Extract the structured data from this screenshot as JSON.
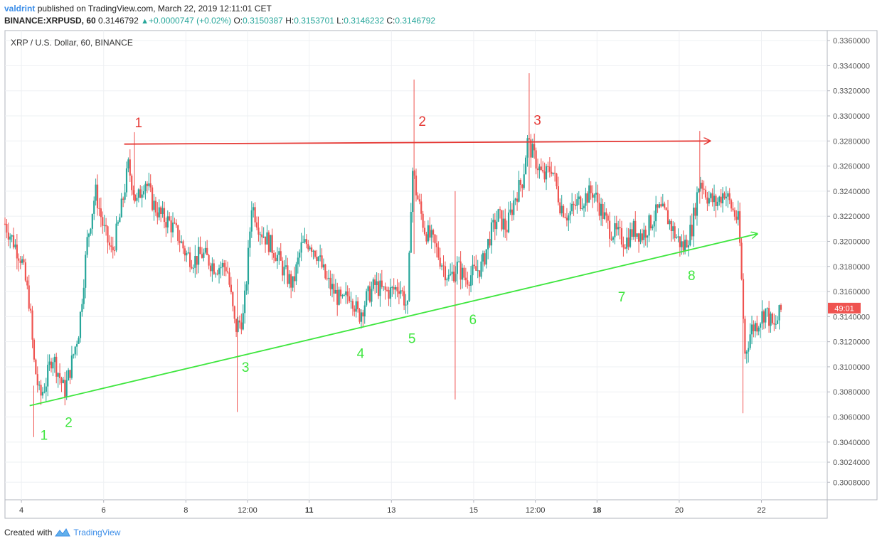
{
  "header": {
    "author": "valdrint",
    "published_text": "published on TradingView.com, March 22, 2019 12:11:01 CET",
    "symbol": "BINANCE:XRPUSD, 60",
    "last_price": "0.3146792",
    "change": "+0.0000747 (+0.02%)",
    "open_label": "O:",
    "open": "0.3150387",
    "high_label": "H:",
    "high": "0.3153701",
    "low_label": "L:",
    "low": "0.3146232",
    "close_label": "C:",
    "close": "0.3146792"
  },
  "footer": {
    "created_with": "Created with",
    "brand": "TradingView"
  },
  "chart_data": {
    "type": "candlestick",
    "title": "XRP / U.S. Dollar, 60, BINANCE",
    "price_badge": "49:01",
    "ylim": [
      0.2994,
      0.3368
    ],
    "x_range": [
      3.6,
      23.6
    ],
    "y_ticks": [
      0.3008,
      0.3024,
      0.304,
      0.306,
      0.308,
      0.31,
      0.312,
      0.314,
      0.316,
      0.318,
      0.32,
      0.322,
      0.324,
      0.326,
      0.328,
      0.33,
      0.332,
      0.334,
      0.336
    ],
    "y_tick_labels": [
      "0.3008000",
      "0.3024000",
      "0.3040000",
      "0.3060000",
      "0.3080000",
      "0.3100000",
      "0.3120000",
      "0.3140000",
      "0.3160000",
      "0.3180000",
      "0.3200000",
      "0.3220000",
      "0.3240000",
      "0.3260000",
      "0.3280000",
      "0.3300000",
      "0.3320000",
      "0.3340000",
      "0.3360000"
    ],
    "x_ticks": [
      {
        "x": 4,
        "label": "4",
        "bold": false
      },
      {
        "x": 6,
        "label": "6",
        "bold": false
      },
      {
        "x": 8,
        "label": "8",
        "bold": false
      },
      {
        "x": 9.5,
        "label": "12:00",
        "bold": false
      },
      {
        "x": 11,
        "label": "11",
        "bold": true
      },
      {
        "x": 13,
        "label": "13",
        "bold": false
      },
      {
        "x": 15,
        "label": "15",
        "bold": false
      },
      {
        "x": 16.5,
        "label": "12:00",
        "bold": false
      },
      {
        "x": 18,
        "label": "18",
        "bold": true
      },
      {
        "x": 20,
        "label": "20",
        "bold": false
      },
      {
        "x": 22,
        "label": "22",
        "bold": false
      }
    ],
    "price_path": [
      [
        3.6,
        0.3214
      ],
      [
        4.0,
        0.3186
      ],
      [
        4.2,
        0.315
      ],
      [
        4.3,
        0.3105
      ],
      [
        4.45,
        0.3075
      ],
      [
        4.6,
        0.3088
      ],
      [
        4.75,
        0.311
      ],
      [
        4.9,
        0.3095
      ],
      [
        5.05,
        0.308
      ],
      [
        5.2,
        0.31
      ],
      [
        5.4,
        0.313
      ],
      [
        5.6,
        0.32
      ],
      [
        5.8,
        0.324
      ],
      [
        6.0,
        0.321
      ],
      [
        6.2,
        0.319
      ],
      [
        6.4,
        0.322
      ],
      [
        6.6,
        0.326
      ],
      [
        6.8,
        0.323
      ],
      [
        7.0,
        0.325
      ],
      [
        7.2,
        0.323
      ],
      [
        7.4,
        0.322
      ],
      [
        7.6,
        0.3215
      ],
      [
        7.8,
        0.3205
      ],
      [
        8.0,
        0.319
      ],
      [
        8.2,
        0.3185
      ],
      [
        8.4,
        0.319
      ],
      [
        8.7,
        0.318
      ],
      [
        9.0,
        0.318
      ],
      [
        9.2,
        0.313
      ],
      [
        9.4,
        0.314
      ],
      [
        9.5,
        0.318
      ],
      [
        9.6,
        0.323
      ],
      [
        9.8,
        0.321
      ],
      [
        10.0,
        0.32
      ],
      [
        10.2,
        0.319
      ],
      [
        10.4,
        0.3175
      ],
      [
        10.6,
        0.3165
      ],
      [
        10.8,
        0.3195
      ],
      [
        11.0,
        0.32
      ],
      [
        11.2,
        0.319
      ],
      [
        11.4,
        0.317
      ],
      [
        11.6,
        0.316
      ],
      [
        11.8,
        0.315
      ],
      [
        12.0,
        0.316
      ],
      [
        12.2,
        0.314
      ],
      [
        12.4,
        0.3155
      ],
      [
        12.6,
        0.3165
      ],
      [
        12.8,
        0.316
      ],
      [
        13.0,
        0.316
      ],
      [
        13.2,
        0.3165
      ],
      [
        13.4,
        0.3145
      ],
      [
        13.5,
        0.326
      ],
      [
        13.6,
        0.324
      ],
      [
        13.8,
        0.321
      ],
      [
        14.0,
        0.32
      ],
      [
        14.2,
        0.3185
      ],
      [
        14.4,
        0.317
      ],
      [
        14.6,
        0.318
      ],
      [
        14.8,
        0.317
      ],
      [
        15.0,
        0.3175
      ],
      [
        15.2,
        0.318
      ],
      [
        15.4,
        0.3205
      ],
      [
        15.6,
        0.322
      ],
      [
        15.8,
        0.321
      ],
      [
        16.0,
        0.3235
      ],
      [
        16.2,
        0.325
      ],
      [
        16.3,
        0.328
      ],
      [
        16.5,
        0.3265
      ],
      [
        16.7,
        0.325
      ],
      [
        16.9,
        0.326
      ],
      [
        17.1,
        0.323
      ],
      [
        17.3,
        0.322
      ],
      [
        17.5,
        0.323
      ],
      [
        17.7,
        0.3235
      ],
      [
        17.9,
        0.324
      ],
      [
        18.1,
        0.3225
      ],
      [
        18.3,
        0.321
      ],
      [
        18.5,
        0.3205
      ],
      [
        18.7,
        0.32
      ],
      [
        18.9,
        0.321
      ],
      [
        19.1,
        0.3205
      ],
      [
        19.3,
        0.3215
      ],
      [
        19.5,
        0.3225
      ],
      [
        19.7,
        0.322
      ],
      [
        19.9,
        0.3205
      ],
      [
        20.1,
        0.3195
      ],
      [
        20.3,
        0.321
      ],
      [
        20.5,
        0.325
      ],
      [
        20.7,
        0.3235
      ],
      [
        20.9,
        0.323
      ],
      [
        21.1,
        0.324
      ],
      [
        21.3,
        0.3225
      ],
      [
        21.45,
        0.3215
      ],
      [
        21.6,
        0.311
      ],
      [
        21.75,
        0.313
      ],
      [
        21.9,
        0.3135
      ],
      [
        22.1,
        0.3145
      ],
      [
        22.3,
        0.313
      ],
      [
        22.5,
        0.3147
      ]
    ],
    "spikes": [
      {
        "x": 4.3,
        "high": 0.3085,
        "low": 0.3044
      },
      {
        "x": 6.75,
        "high": 0.3287,
        "low": 0.323
      },
      {
        "x": 9.25,
        "high": 0.317,
        "low": 0.3064
      },
      {
        "x": 13.55,
        "high": 0.3329,
        "low": 0.319
      },
      {
        "x": 14.55,
        "high": 0.324,
        "low": 0.3074
      },
      {
        "x": 16.35,
        "high": 0.3334,
        "low": 0.324
      },
      {
        "x": 20.5,
        "high": 0.3288,
        "low": 0.323
      },
      {
        "x": 21.55,
        "high": 0.316,
        "low": 0.3063
      }
    ],
    "resistance_line": {
      "color": "#e53935",
      "x": [
        6.5,
        20.75
      ],
      "y": [
        0.32775,
        0.328
      ]
    },
    "support_line": {
      "color": "#3ee63e",
      "x": [
        4.2,
        21.9
      ],
      "y": [
        0.3069,
        0.3206
      ]
    },
    "annotations": [
      {
        "text": "1",
        "color": "#e53935",
        "x": 6.85,
        "y": 0.3291
      },
      {
        "text": "2",
        "color": "#e53935",
        "x": 13.75,
        "y": 0.3292
      },
      {
        "text": "3",
        "color": "#e53935",
        "x": 16.55,
        "y": 0.3293
      },
      {
        "text": "1",
        "color": "#3ee63e",
        "x": 4.55,
        "y": 0.3042
      },
      {
        "text": "2",
        "color": "#3ee63e",
        "x": 5.15,
        "y": 0.3052
      },
      {
        "text": "3",
        "color": "#3ee63e",
        "x": 9.45,
        "y": 0.3096
      },
      {
        "text": "4",
        "color": "#3ee63e",
        "x": 12.25,
        "y": 0.3107
      },
      {
        "text": "5",
        "color": "#3ee63e",
        "x": 13.5,
        "y": 0.3119
      },
      {
        "text": "6",
        "color": "#3ee63e",
        "x": 14.98,
        "y": 0.3134
      },
      {
        "text": "7",
        "color": "#3ee63e",
        "x": 18.6,
        "y": 0.3152
      },
      {
        "text": "8",
        "color": "#3ee63e",
        "x": 20.3,
        "y": 0.3169
      }
    ]
  }
}
